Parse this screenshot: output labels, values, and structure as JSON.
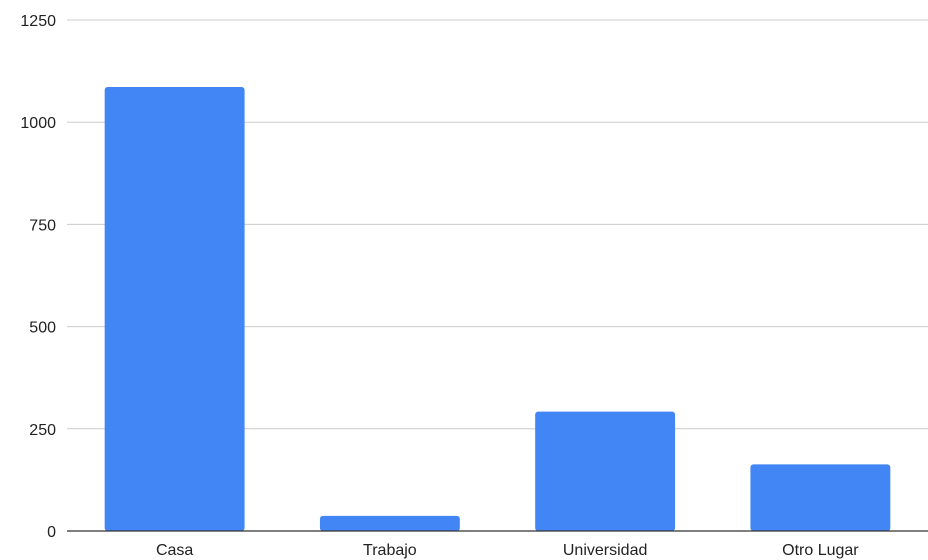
{
  "chart_data": {
    "type": "bar",
    "title": "",
    "xlabel": "",
    "ylabel": "",
    "categories": [
      "Casa",
      "Trabajo",
      "Universidad",
      "Otro Lugar"
    ],
    "values": [
      1086,
      37,
      292,
      163
    ],
    "ylim": [
      0,
      1250
    ],
    "yticks": [
      0,
      250,
      500,
      750,
      1000,
      1250
    ],
    "ytick_labels": [
      "0",
      "250",
      "500",
      "750",
      "1000",
      "1250"
    ],
    "grid": true,
    "legend": "none",
    "bar_color": "#4285f4"
  }
}
